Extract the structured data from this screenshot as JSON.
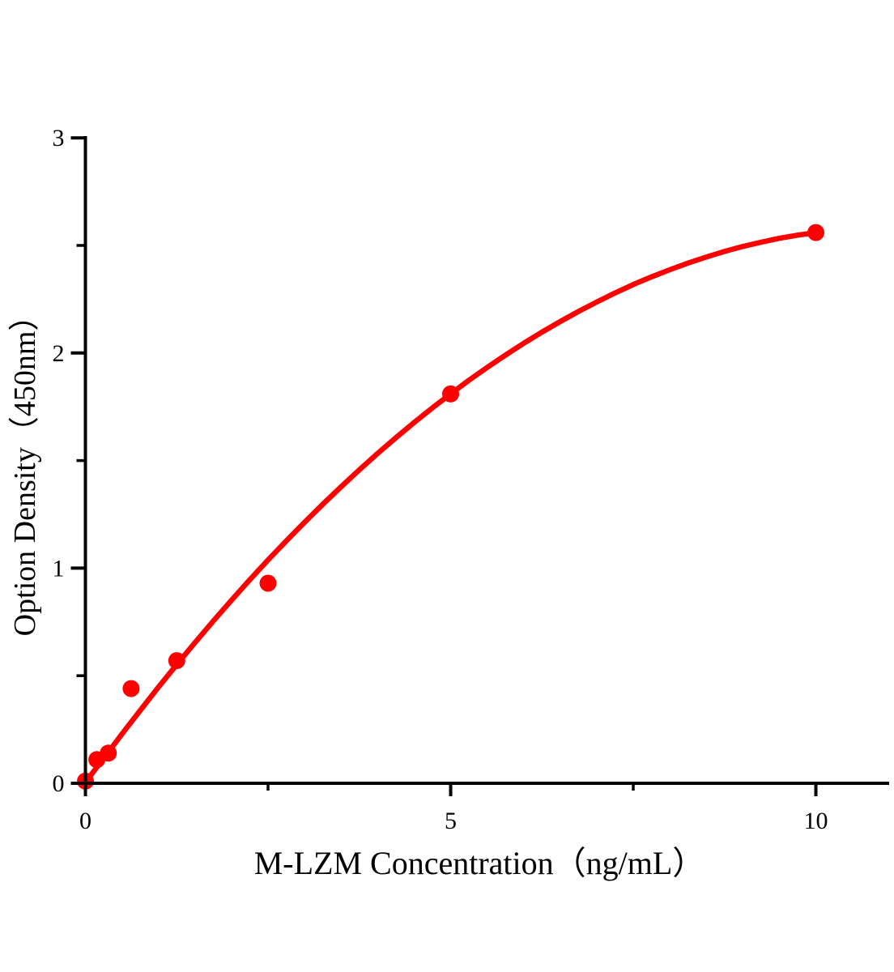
{
  "style": {
    "background": "#ffffff",
    "accent_color": "#ff0000",
    "axis_color": "#000000",
    "text_color": "#000000"
  },
  "chart_data": {
    "type": "scatter",
    "title": "",
    "xlabel": "M-LZM Concentration（ng/mL）",
    "ylabel": "Option Density（450nm）",
    "xlim": [
      0,
      11
    ],
    "ylim": [
      0,
      3
    ],
    "grid": false,
    "legend_position": "none",
    "x_ticks": {
      "major": [
        {
          "value": 0,
          "label": "0"
        },
        {
          "value": 5,
          "label": "5"
        },
        {
          "value": 10,
          "label": "10"
        }
      ],
      "minor": [
        2.5,
        7.5
      ]
    },
    "y_ticks": {
      "major": [
        {
          "value": 0,
          "label": "0"
        },
        {
          "value": 1,
          "label": "1"
        },
        {
          "value": 2,
          "label": "2"
        },
        {
          "value": 3,
          "label": "3"
        }
      ],
      "minor": [
        0.5,
        1.5,
        2.5
      ]
    },
    "points": [
      {
        "x": 0,
        "y": 0.01
      },
      {
        "x": 0.156,
        "y": 0.11
      },
      {
        "x": 0.313,
        "y": 0.14
      },
      {
        "x": 0.625,
        "y": 0.44
      },
      {
        "x": 1.25,
        "y": 0.57
      },
      {
        "x": 2.5,
        "y": 0.93
      },
      {
        "x": 5,
        "y": 1.81
      },
      {
        "x": 10,
        "y": 2.56
      }
    ],
    "curve": {
      "description": "smooth fitted standard curve drawn through the points",
      "samples": [
        [
          0,
          0.005
        ],
        [
          0.25,
          0.116
        ],
        [
          0.5,
          0.229
        ],
        [
          0.75,
          0.339
        ],
        [
          1,
          0.447
        ],
        [
          1.25,
          0.552
        ],
        [
          1.5,
          0.654
        ],
        [
          1.75,
          0.754
        ],
        [
          2,
          0.851
        ],
        [
          2.25,
          0.946
        ],
        [
          2.5,
          1.038
        ],
        [
          2.75,
          1.127
        ],
        [
          3,
          1.213
        ],
        [
          3.25,
          1.297
        ],
        [
          3.5,
          1.378
        ],
        [
          3.75,
          1.457
        ],
        [
          4,
          1.533
        ],
        [
          4.25,
          1.606
        ],
        [
          4.5,
          1.677
        ],
        [
          4.75,
          1.745
        ],
        [
          5,
          1.81
        ],
        [
          5.25,
          1.873
        ],
        [
          5.5,
          1.933
        ],
        [
          5.75,
          1.99
        ],
        [
          6,
          2.045
        ],
        [
          6.25,
          2.097
        ],
        [
          6.5,
          2.146
        ],
        [
          6.75,
          2.193
        ],
        [
          7,
          2.237
        ],
        [
          7.25,
          2.279
        ],
        [
          7.5,
          2.318
        ],
        [
          7.75,
          2.354
        ],
        [
          8,
          2.387
        ],
        [
          8.25,
          2.418
        ],
        [
          8.5,
          2.446
        ],
        [
          8.75,
          2.472
        ],
        [
          9,
          2.495
        ],
        [
          9.25,
          2.515
        ],
        [
          9.5,
          2.533
        ],
        [
          9.75,
          2.548
        ],
        [
          10,
          2.56
        ]
      ]
    }
  }
}
